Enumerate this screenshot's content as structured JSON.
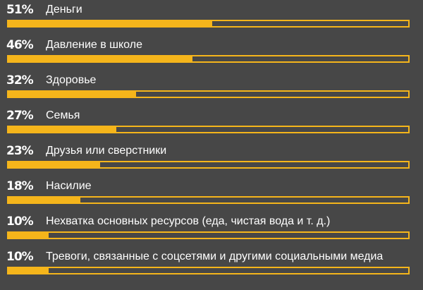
{
  "chart_data": {
    "type": "bar",
    "orientation": "horizontal",
    "unit": "%",
    "xlim": [
      0,
      100
    ],
    "grid": false,
    "bar_color": "#f5b51b",
    "track_color": "#f5b51b",
    "background_color": "#474747",
    "text_color": "#ffffff",
    "categories": [
      "Деньги",
      "Давление в школе",
      "Здоровье",
      "Семья",
      "Друзья или сверстники",
      "Насилие",
      "Нехватка основных ресурсов (еда, чистая вода и т. д.)",
      "Тревоги, связанные с соцсетями и другими социальными медиа"
    ],
    "values": [
      51,
      46,
      32,
      27,
      23,
      18,
      10,
      10
    ],
    "value_labels": [
      "51%",
      "46%",
      "32%",
      "27%",
      "23%",
      "18%",
      "10%",
      "10%"
    ]
  }
}
